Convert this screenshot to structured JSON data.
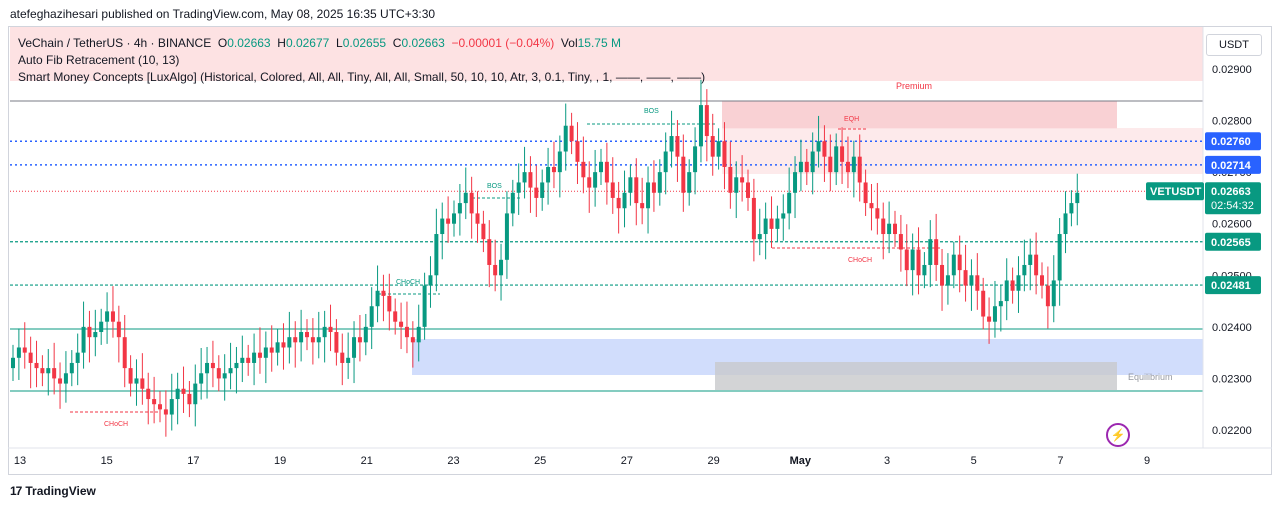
{
  "header": {
    "published": "atefeghazihesari published on TradingView.com, May 08, 2025 16:35 UTC+3:30"
  },
  "legend": {
    "symbol": "VeChain / TetherUS · 4h · BINANCE",
    "o_label": "O",
    "o_value": "0.02663",
    "h_label": "H",
    "h_value": "0.02677",
    "l_label": "L",
    "l_value": "0.02655",
    "c_label": "C",
    "c_value": "0.02663",
    "change": "−0.00001 (−0.04%)",
    "vol_label": "Vol",
    "vol_value": "15.75 M",
    "indicator1": "Auto Fib Retracement (10, 13)",
    "indicator2": "Smart Money Concepts [LuxAlgo] (Historical, Colored, All, All, Tiny, All, All, Small, 50, 10, 10, Atr, 3, 0.1, Tiny, , 1, ——, ——, ——)"
  },
  "currency_button": "USDT",
  "footer": {
    "brand": "TradingView"
  },
  "colors": {
    "up": "#089981",
    "down": "#f23645",
    "premium": "#f8c9cc",
    "discount": "#c6d4fb",
    "equilibrium": "#c8c9cc"
  },
  "chart_data": {
    "type": "candlestick",
    "x_ticks": [
      "13",
      "15",
      "17",
      "19",
      "21",
      "23",
      "25",
      "27",
      "29",
      "May",
      "3",
      "5",
      "7",
      "9"
    ],
    "y_ticks": [
      "0.02900",
      "0.02800",
      "0.02700",
      "0.02600",
      "0.02500",
      "0.02400",
      "0.02300",
      "0.02200"
    ],
    "ylim": [
      0.0215,
      0.0297
    ],
    "price_labels": [
      {
        "text": "0.02760",
        "value": 0.0276,
        "color": "#2962ff"
      },
      {
        "text": "0.02714",
        "value": 0.02714,
        "color": "#2962ff"
      },
      {
        "text": "0.02565",
        "value": 0.02565,
        "color": "#089981"
      },
      {
        "text": "0.02481",
        "value": 0.02481,
        "color": "#089981"
      }
    ],
    "current_price": {
      "symbol": "VETUSDT",
      "price": "0.02663",
      "value": 0.02663,
      "countdown": "02:54:32"
    },
    "zone_labels": {
      "premium": "Premium",
      "equilibrium": "Equilibrium"
    },
    "structure_labels": [
      "BOS",
      "BOS",
      "CHoCH",
      "CHoCH",
      "CHoCH",
      "EQH"
    ],
    "closes": [
      0.0234,
      0.0236,
      0.0235,
      0.0233,
      0.0232,
      0.0231,
      0.0232,
      0.023,
      0.0229,
      0.0231,
      0.0233,
      0.0235,
      0.024,
      0.0238,
      0.0239,
      0.0241,
      0.0243,
      0.0241,
      0.0238,
      0.0232,
      0.0229,
      0.023,
      0.0228,
      0.0226,
      0.0225,
      0.0224,
      0.0223,
      0.0226,
      0.0228,
      0.0227,
      0.0225,
      0.0229,
      0.0231,
      0.0233,
      0.0232,
      0.023,
      0.0231,
      0.0232,
      0.0233,
      0.0234,
      0.0233,
      0.0235,
      0.0234,
      0.0236,
      0.0235,
      0.0237,
      0.0236,
      0.0238,
      0.0237,
      0.0239,
      0.0238,
      0.0237,
      0.0238,
      0.024,
      0.0239,
      0.0235,
      0.0233,
      0.0234,
      0.0238,
      0.0237,
      0.024,
      0.0244,
      0.0247,
      0.0246,
      0.0243,
      0.0241,
      0.024,
      0.0238,
      0.0237,
      0.024,
      0.0248,
      0.025,
      0.0258,
      0.0261,
      0.026,
      0.0262,
      0.0264,
      0.0266,
      0.0262,
      0.026,
      0.0257,
      0.0252,
      0.025,
      0.0253,
      0.0262,
      0.0266,
      0.0268,
      0.027,
      0.0267,
      0.0265,
      0.0268,
      0.0271,
      0.027,
      0.0274,
      0.0279,
      0.0276,
      0.0272,
      0.0269,
      0.0267,
      0.027,
      0.0272,
      0.0268,
      0.0265,
      0.0263,
      0.0266,
      0.0269,
      0.0264,
      0.0263,
      0.0268,
      0.0266,
      0.027,
      0.0274,
      0.0277,
      0.0273,
      0.0266,
      0.027,
      0.0275,
      0.0283,
      0.0277,
      0.0273,
      0.0276,
      0.0271,
      0.0266,
      0.0269,
      0.0268,
      0.0265,
      0.0257,
      0.0258,
      0.0261,
      0.0259,
      0.0261,
      0.0262,
      0.0266,
      0.027,
      0.0272,
      0.027,
      0.0274,
      0.0276,
      0.0273,
      0.027,
      0.0275,
      0.0272,
      0.027,
      0.0273,
      0.0268,
      0.0264,
      0.0263,
      0.0261,
      0.0258,
      0.026,
      0.0258,
      0.0255,
      0.0251,
      0.0255,
      0.025,
      0.0252,
      0.0257,
      0.0252,
      0.0248,
      0.025,
      0.0254,
      0.0251,
      0.0248,
      0.025,
      0.0247,
      0.0242,
      0.0241,
      0.0244,
      0.0245,
      0.0249,
      0.0247,
      0.025,
      0.0252,
      0.0254,
      0.025,
      0.0248,
      0.0244,
      0.0249,
      0.0258,
      0.0262,
      0.0264,
      0.0266
    ]
  }
}
